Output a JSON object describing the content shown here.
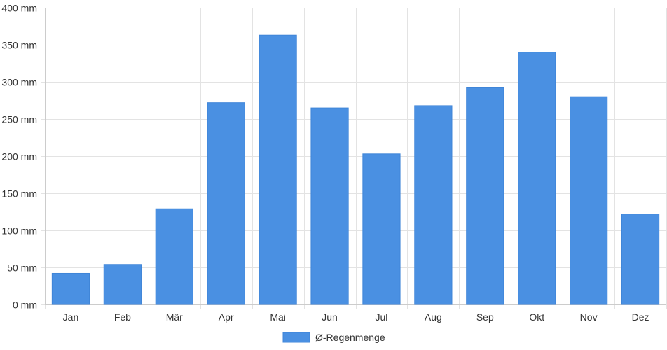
{
  "chart_data": {
    "type": "bar",
    "title": "",
    "xlabel": "",
    "ylabel": "",
    "categories": [
      "Jan",
      "Feb",
      "Mär",
      "Apr",
      "Mai",
      "Jun",
      "Jul",
      "Aug",
      "Sep",
      "Okt",
      "Nov",
      "Dez"
    ],
    "series": [
      {
        "name": "Ø-Regenmenge",
        "values": [
          42,
          54,
          129,
          272,
          363,
          265,
          203,
          268,
          292,
          340,
          280,
          122
        ],
        "color": "#4a90e2"
      }
    ],
    "ylim": [
      0,
      400
    ],
    "yticks": [
      0,
      50,
      100,
      150,
      200,
      250,
      300,
      350,
      400
    ],
    "ytick_unit": "mm",
    "grid": true,
    "legend_position": "bottom-center"
  }
}
